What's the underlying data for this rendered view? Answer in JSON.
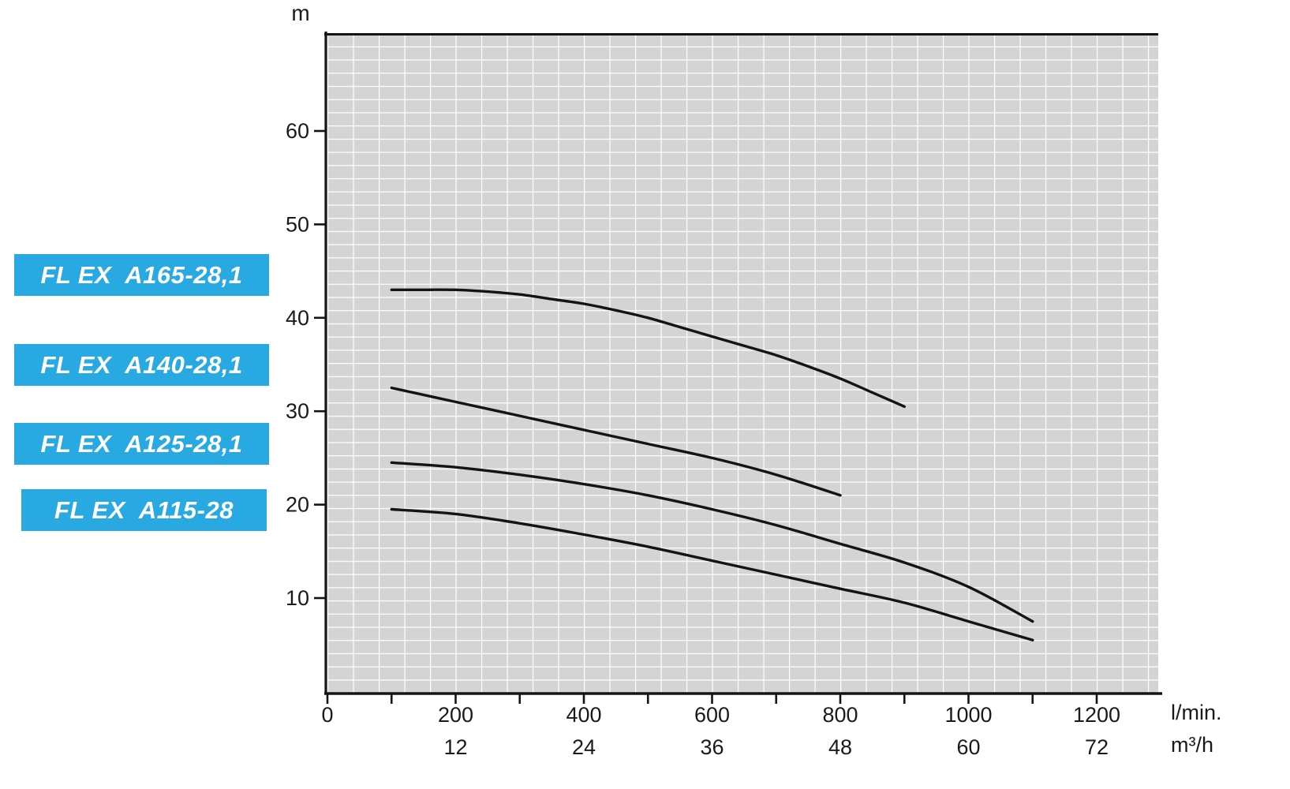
{
  "pump_labels": [
    {
      "label": "FL EX  A165-28,1"
    },
    {
      "label": "FL EX  A140-28,1"
    },
    {
      "label": "FL EX  A125-28,1"
    },
    {
      "label": "FL EX  A115-28"
    }
  ],
  "colors": {
    "label_background": "#29a9e1",
    "label_text": "#ffffff",
    "plot_background": "#d4d4d4",
    "grid_line": "#ffffff",
    "curve": "#141414"
  },
  "chart_data": {
    "type": "line",
    "title": "",
    "ylabel": "m",
    "xlabel_primary": "l/min.",
    "xlabel_secondary": "m³/h",
    "y_ticks": [
      10,
      20,
      30,
      40,
      50,
      60
    ],
    "x_ticks_lmin": [
      0,
      200,
      400,
      600,
      800,
      1000,
      1200
    ],
    "x_ticks_m3h": [
      12,
      24,
      36,
      48,
      60,
      72
    ],
    "xlim_lmin": [
      0,
      1296
    ],
    "ylim_m": [
      0,
      70.5
    ],
    "grid": true,
    "legend_position": "left-outside-blue-boxes",
    "series": [
      {
        "name": "FL EX A165-28,1",
        "points": [
          [
            100,
            43
          ],
          [
            150,
            43
          ],
          [
            200,
            43
          ],
          [
            250,
            42.8
          ],
          [
            300,
            42.5
          ],
          [
            350,
            42
          ],
          [
            400,
            41.5
          ],
          [
            450,
            40.8
          ],
          [
            500,
            40
          ],
          [
            550,
            39
          ],
          [
            600,
            38
          ],
          [
            650,
            37
          ],
          [
            700,
            36
          ],
          [
            750,
            34.8
          ],
          [
            800,
            33.5
          ],
          [
            850,
            32
          ],
          [
            900,
            30.5
          ]
        ]
      },
      {
        "name": "FL EX A140-28,1",
        "points": [
          [
            100,
            32.5
          ],
          [
            200,
            31
          ],
          [
            300,
            29.5
          ],
          [
            400,
            28
          ],
          [
            500,
            26.5
          ],
          [
            600,
            25
          ],
          [
            700,
            23.2
          ],
          [
            800,
            21
          ]
        ]
      },
      {
        "name": "FL EX A125-28,1",
        "points": [
          [
            100,
            24.5
          ],
          [
            200,
            24
          ],
          [
            300,
            23.2
          ],
          [
            400,
            22.2
          ],
          [
            500,
            21
          ],
          [
            600,
            19.5
          ],
          [
            700,
            17.8
          ],
          [
            800,
            15.8
          ],
          [
            900,
            13.8
          ],
          [
            1000,
            11.2
          ],
          [
            1100,
            7.5
          ]
        ]
      },
      {
        "name": "FL EX A115-28",
        "points": [
          [
            100,
            19.5
          ],
          [
            200,
            19
          ],
          [
            300,
            18
          ],
          [
            400,
            16.8
          ],
          [
            500,
            15.5
          ],
          [
            600,
            14
          ],
          [
            700,
            12.5
          ],
          [
            800,
            11
          ],
          [
            900,
            9.5
          ],
          [
            1000,
            7.5
          ],
          [
            1100,
            5.5
          ]
        ]
      }
    ]
  }
}
